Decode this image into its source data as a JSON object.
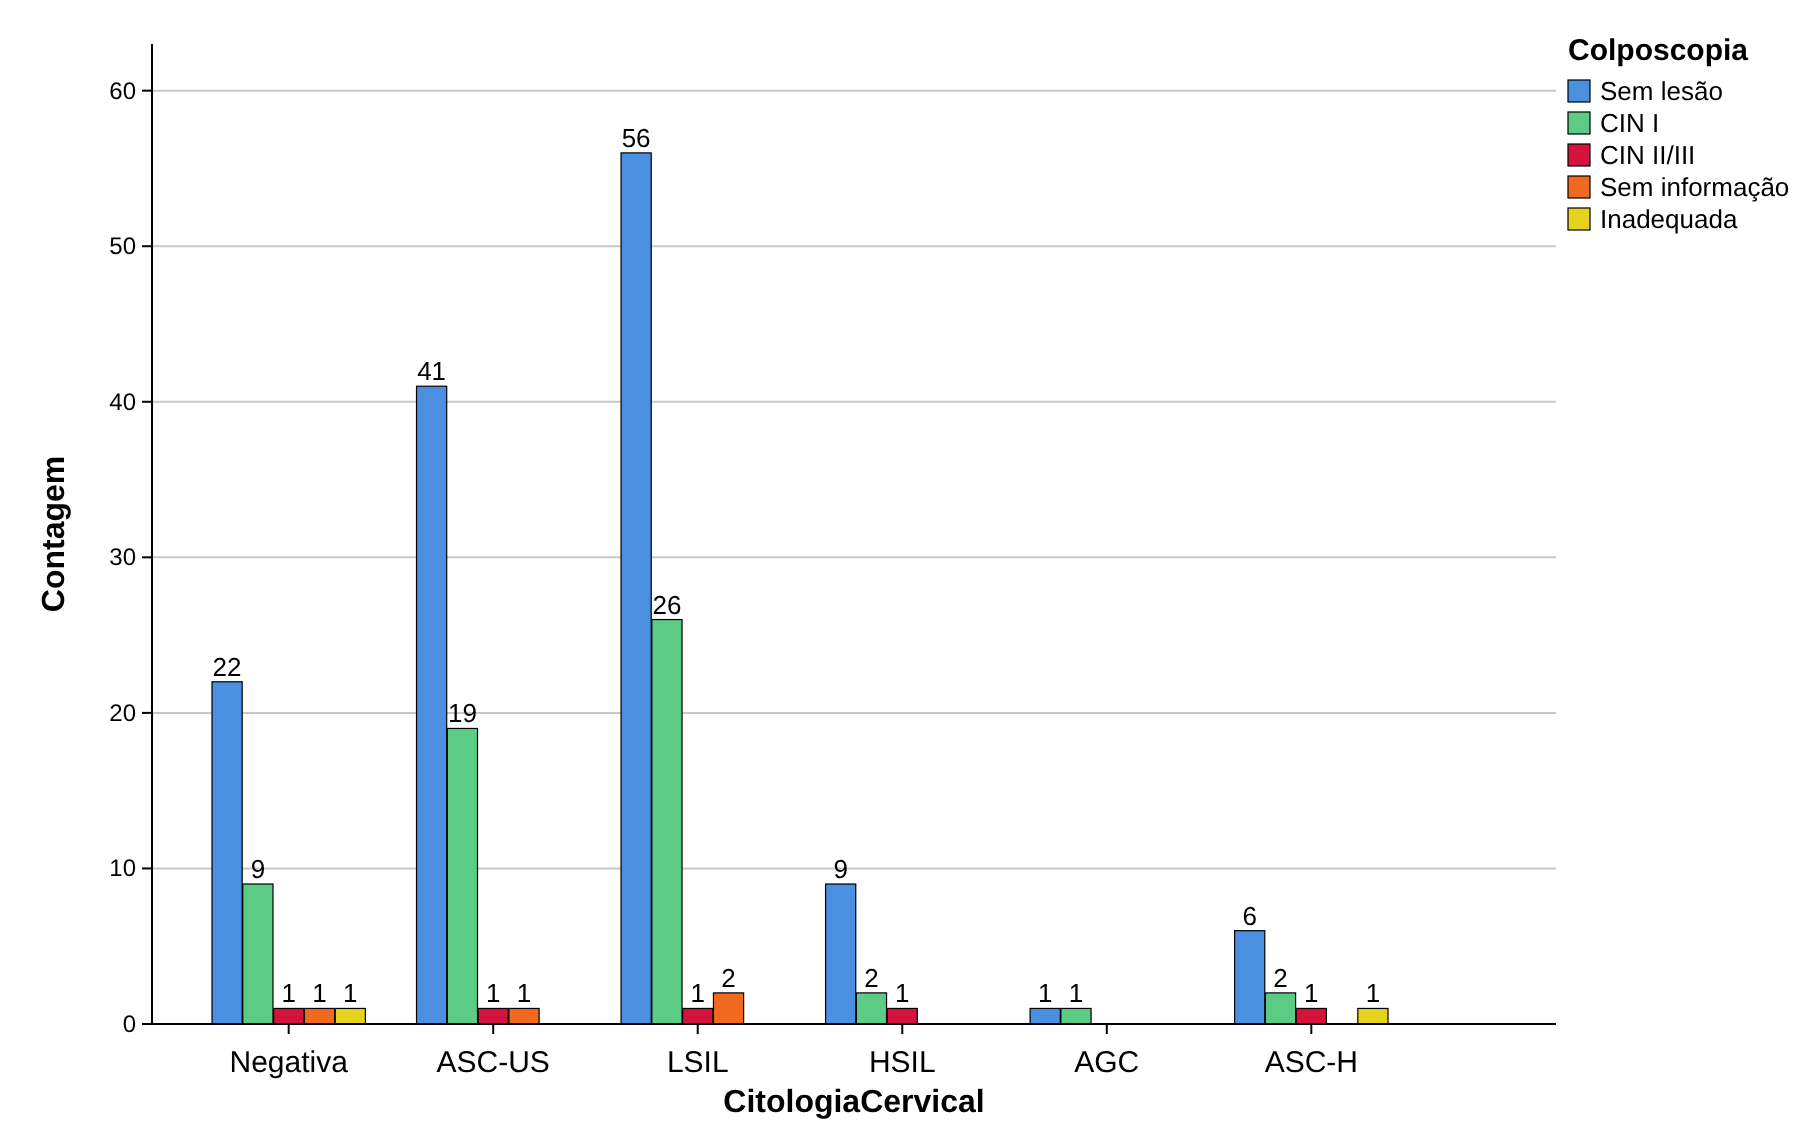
{
  "chart_data": {
    "type": "bar",
    "xlabel": "CitologiaCervical",
    "ylabel": "Contagem",
    "legend_title": "Colposcopia",
    "categories": [
      "Negativa",
      "ASC-US",
      "LSIL",
      "HSIL",
      "AGC",
      "ASC-H"
    ],
    "series": [
      {
        "name": "Sem lesão",
        "color": "#4a8fe0",
        "values": [
          22,
          41,
          56,
          9,
          1,
          6
        ]
      },
      {
        "name": "CIN I",
        "color": "#5ccc85",
        "values": [
          9,
          19,
          26,
          2,
          1,
          2
        ]
      },
      {
        "name": "CIN II/III",
        "color": "#d3133b",
        "values": [
          1,
          1,
          1,
          1,
          null,
          1
        ]
      },
      {
        "name": "Sem informação",
        "color": "#f0691f",
        "values": [
          1,
          1,
          2,
          null,
          null,
          null
        ]
      },
      {
        "name": "Inadequada",
        "color": "#e6d31e",
        "values": [
          1,
          null,
          null,
          null,
          null,
          1
        ]
      }
    ],
    "ylim": [
      0,
      63
    ],
    "yticks": [
      0,
      10,
      20,
      30,
      40,
      50,
      60
    ],
    "grid": "y",
    "legend": "top right",
    "data_labels": true
  }
}
